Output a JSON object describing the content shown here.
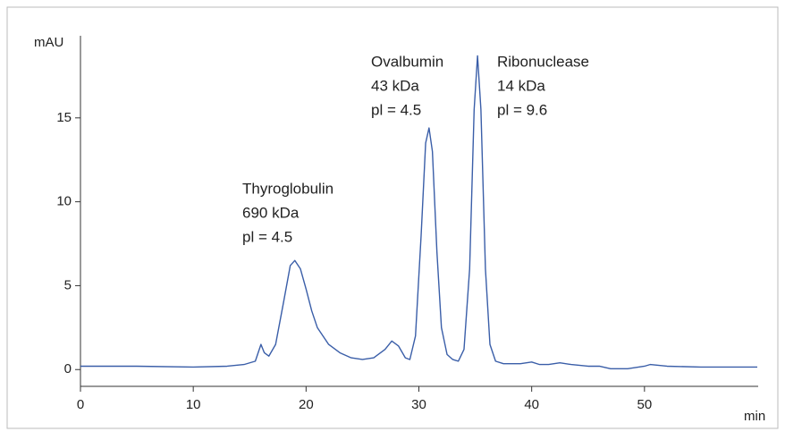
{
  "chart_data": {
    "type": "line",
    "y_label": "mAU",
    "x_label": "min",
    "xlim": [
      0,
      60
    ],
    "ylim": [
      -1,
      20
    ],
    "xticks": [
      0,
      10,
      20,
      30,
      40,
      50
    ],
    "yticks": [
      0,
      5,
      10,
      15
    ],
    "annotations": [
      {
        "lines": [
          "Thyroglobulin",
          "690 kDa",
          "pl = 4.5"
        ]
      },
      {
        "lines": [
          "Ovalbumin",
          "43 kDa",
          "pl = 4.5"
        ]
      },
      {
        "lines": [
          "Ribonuclease",
          "14 kDa",
          "pl = 9.6"
        ]
      }
    ],
    "x": [
      0,
      5,
      10,
      13,
      14.5,
      15.5,
      16,
      16.3,
      16.7,
      17.3,
      18,
      18.6,
      19,
      19.5,
      20,
      20.5,
      21,
      22,
      23,
      24,
      25,
      26,
      27,
      27.6,
      28.2,
      28.8,
      29.2,
      29.7,
      30.2,
      30.6,
      30.9,
      31.2,
      31.6,
      32,
      32.5,
      33,
      33.5,
      34,
      34.5,
      34.9,
      35.2,
      35.5,
      35.9,
      36.3,
      36.8,
      37.5,
      39,
      40,
      40.7,
      41.5,
      42.5,
      43.5,
      45,
      46,
      47,
      48.5,
      50,
      50.5,
      52,
      55,
      60
    ],
    "series": [
      {
        "color": "#3a5ea8",
        "values": [
          0.2,
          0.2,
          0.15,
          0.2,
          0.3,
          0.5,
          1.5,
          1.0,
          0.8,
          1.5,
          4,
          6.2,
          6.5,
          6.0,
          4.8,
          3.5,
          2.5,
          1.5,
          1.0,
          0.7,
          0.6,
          0.7,
          1.2,
          1.7,
          1.4,
          0.7,
          0.6,
          2,
          8,
          13.5,
          14.4,
          13,
          7,
          2.5,
          0.9,
          0.6,
          0.5,
          1.2,
          6,
          15.5,
          18.7,
          15.5,
          6,
          1.5,
          0.5,
          0.35,
          0.35,
          0.45,
          0.3,
          0.3,
          0.4,
          0.3,
          0.2,
          0.2,
          0.05,
          0.05,
          0.2,
          0.3,
          0.2,
          0.15,
          0.15
        ]
      }
    ]
  }
}
